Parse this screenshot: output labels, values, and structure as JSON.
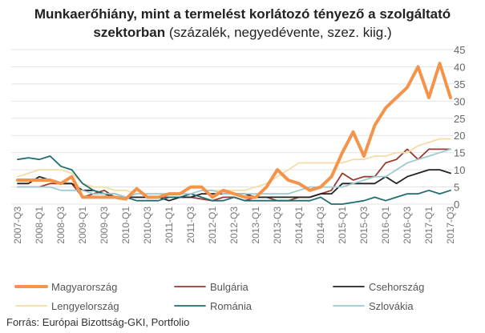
{
  "title_line1": "Munkaerőhiány, mint a termelést korlátozó tényező  a szolgáltató",
  "title_line2_bold": "szektorban",
  "title_line2_rest": " (százalék, negyedévente, szez. kiig.)",
  "source": "Forrás: Európai Bizottság-GKI, Portfolio",
  "chart_data": {
    "type": "line",
    "ylim": [
      0,
      45
    ],
    "yticks": [
      0,
      5,
      10,
      15,
      20,
      25,
      30,
      35,
      40,
      45
    ],
    "y_axis_position": "right",
    "grid": true,
    "legend_position": "bottom",
    "x": [
      "2007-Q3",
      "2007-Q4",
      "2008-Q1",
      "2008-Q2",
      "2008-Q3",
      "2008-Q4",
      "2009-Q1",
      "2009-Q2",
      "2009-Q3",
      "2009-Q4",
      "2010-Q1",
      "2010-Q2",
      "2010-Q3",
      "2010-Q4",
      "2011-Q1",
      "2011-Q2",
      "2011-Q3",
      "2011-Q4",
      "2012-Q1",
      "2012-Q2",
      "2012-Q3",
      "2012-Q4",
      "2013-Q1",
      "2013-Q2",
      "2013-Q3",
      "2013-Q4",
      "2014-Q1",
      "2014-Q2",
      "2014-Q3",
      "2014-Q4",
      "2015-Q1",
      "2015-Q2",
      "2015-Q3",
      "2015-Q4",
      "2016-Q1",
      "2016-Q2",
      "2016-Q3",
      "2016-Q4",
      "2017-Q1",
      "2017-Q2",
      "2017-Q3"
    ],
    "xtick_labels": [
      "2007-Q3",
      "2008-Q1",
      "2008-Q3",
      "2009-Q1",
      "2009-Q3",
      "2010-Q1",
      "2010-Q3",
      "2011-Q1",
      "2011-Q3",
      "2012-Q1",
      "2012-Q3",
      "2013-Q1",
      "2013-Q3",
      "2014-Q1",
      "2014-Q3",
      "2015-Q1",
      "2015-Q3",
      "2016-Q1",
      "2016-Q3",
      "2017-Q1",
      "2017-Q3"
    ],
    "series": [
      {
        "name": "Magyarország",
        "color": "#f4934a",
        "width": 4,
        "values": [
          7,
          7,
          7,
          7,
          6,
          8,
          2,
          2,
          2,
          2,
          1.5,
          4.5,
          2,
          2,
          3,
          3,
          5,
          5,
          2,
          4,
          3,
          2,
          2,
          5,
          10,
          7,
          6,
          4,
          5,
          8,
          15,
          21,
          14,
          23,
          28,
          31,
          34,
          40,
          31,
          41,
          31
        ]
      },
      {
        "name": "Bulgária",
        "color": "#9b3a2e",
        "width": 1.8,
        "values": [
          5,
          5,
          5,
          6,
          6,
          6,
          2,
          3,
          4,
          2,
          2,
          2,
          2,
          2,
          2,
          2,
          2,
          1.5,
          1,
          2,
          2,
          1,
          2,
          2,
          1,
          1,
          2,
          2,
          3,
          4,
          9,
          7,
          8,
          8,
          12,
          13,
          16,
          13,
          16,
          16,
          16
        ]
      },
      {
        "name": "Csehország",
        "color": "#222222",
        "width": 1.8,
        "values": [
          6,
          6,
          8,
          7,
          6,
          6,
          4,
          4,
          3,
          2,
          2,
          2,
          2,
          2,
          1,
          2,
          2,
          3,
          3,
          3,
          3,
          3,
          2,
          2,
          2,
          2,
          2,
          2,
          3,
          3,
          6,
          6,
          6,
          6,
          8,
          6,
          8,
          9,
          10,
          10,
          9
        ]
      },
      {
        "name": "Lengyelország",
        "color": "#f3dca6",
        "width": 1.8,
        "values": [
          8,
          9,
          10,
          10,
          10,
          9,
          6,
          5,
          5,
          4,
          4,
          3,
          3,
          3,
          3,
          3,
          3,
          4,
          4,
          4,
          4,
          4,
          5,
          6,
          8,
          10,
          12,
          12,
          12,
          12,
          12,
          13,
          13,
          14,
          14,
          15,
          15,
          17,
          18,
          19,
          19
        ]
      },
      {
        "name": "Románia",
        "color": "#1f6e72",
        "width": 1.8,
        "values": [
          13,
          13.5,
          13,
          14,
          11,
          10,
          6,
          4,
          3,
          3,
          2,
          1,
          1,
          1,
          2,
          2,
          3,
          2,
          1,
          1,
          2,
          1,
          1,
          1,
          1,
          1,
          1,
          1,
          2,
          0,
          0,
          0.5,
          1,
          2,
          1,
          2,
          3,
          3,
          4,
          3,
          4
        ]
      },
      {
        "name": "Szlovákia",
        "color": "#9ccbd4",
        "width": 1.8,
        "values": [
          5,
          5,
          5,
          5,
          4,
          4,
          4,
          3,
          3,
          3,
          2,
          3,
          3,
          3,
          3,
          3,
          3,
          4,
          4,
          3,
          3,
          3,
          3,
          3,
          3,
          3,
          4,
          5,
          5,
          5,
          5,
          6,
          7,
          8,
          8,
          10,
          12,
          13,
          14,
          15,
          16
        ]
      }
    ]
  }
}
